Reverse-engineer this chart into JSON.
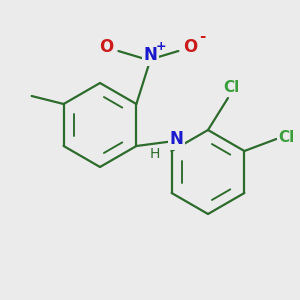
{
  "background_color": "#ebebeb",
  "bond_color": "#2d6b2d",
  "atom_colors": {
    "N_imine": "#1a1acc",
    "N_nitro": "#1a1acc",
    "O": "#cc1a1a",
    "Cl": "#3a9e3a",
    "C": "#2d6b2d",
    "H": "#2d6b2d"
  },
  "bond_lw": 1.6,
  "font_size": 11
}
